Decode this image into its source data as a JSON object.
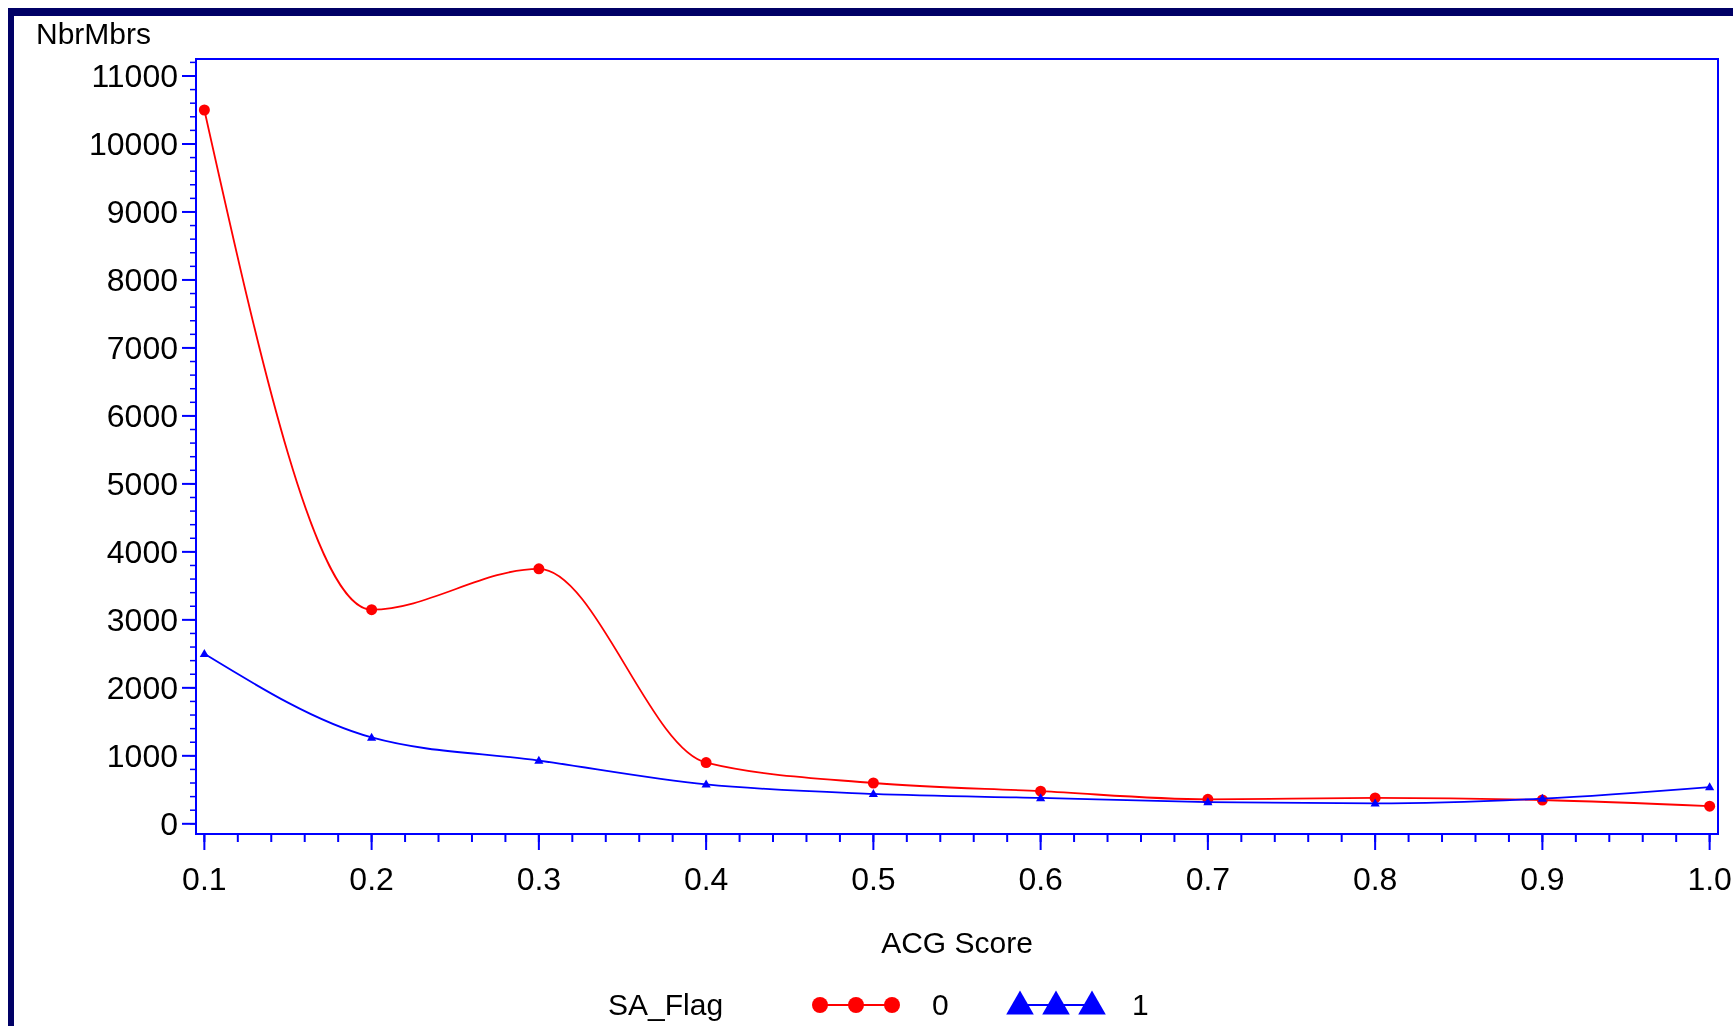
{
  "chart_data": {
    "type": "line",
    "xlabel": "ACG Score",
    "ylabel": "NbrMbrs",
    "legend_title": "SA_Flag",
    "legend": "bottom",
    "grid": false,
    "x": [
      0.1,
      0.2,
      0.3,
      0.4,
      0.5,
      0.6,
      0.7,
      0.8,
      0.9,
      1.0
    ],
    "xlim": [
      0.095,
      1.005
    ],
    "xticks": [
      {
        "value": 0.1,
        "label": "0.1"
      },
      {
        "value": 0.2,
        "label": "0.2"
      },
      {
        "value": 0.3,
        "label": "0.3"
      },
      {
        "value": 0.4,
        "label": "0.4"
      },
      {
        "value": 0.5,
        "label": "0.5"
      },
      {
        "value": 0.6,
        "label": "0.6"
      },
      {
        "value": 0.7,
        "label": "0.7"
      },
      {
        "value": 0.8,
        "label": "0.8"
      },
      {
        "value": 0.9,
        "label": "0.9"
      },
      {
        "value": 1.0,
        "label": "1.0"
      }
    ],
    "ylim": [
      -150,
      11250
    ],
    "yticks": [
      0,
      1000,
      2000,
      3000,
      4000,
      5000,
      6000,
      7000,
      8000,
      9000,
      10000,
      11000
    ],
    "series": [
      {
        "name": "0",
        "color": "#ff0000",
        "marker": "circle",
        "values": [
          10500,
          3150,
          3750,
          900,
          600,
          480,
          360,
          380,
          350,
          260
        ]
      },
      {
        "name": "1",
        "color": "#0000ff",
        "marker": "triangle",
        "values": [
          2500,
          1270,
          930,
          580,
          440,
          380,
          320,
          300,
          370,
          540
        ]
      }
    ]
  }
}
